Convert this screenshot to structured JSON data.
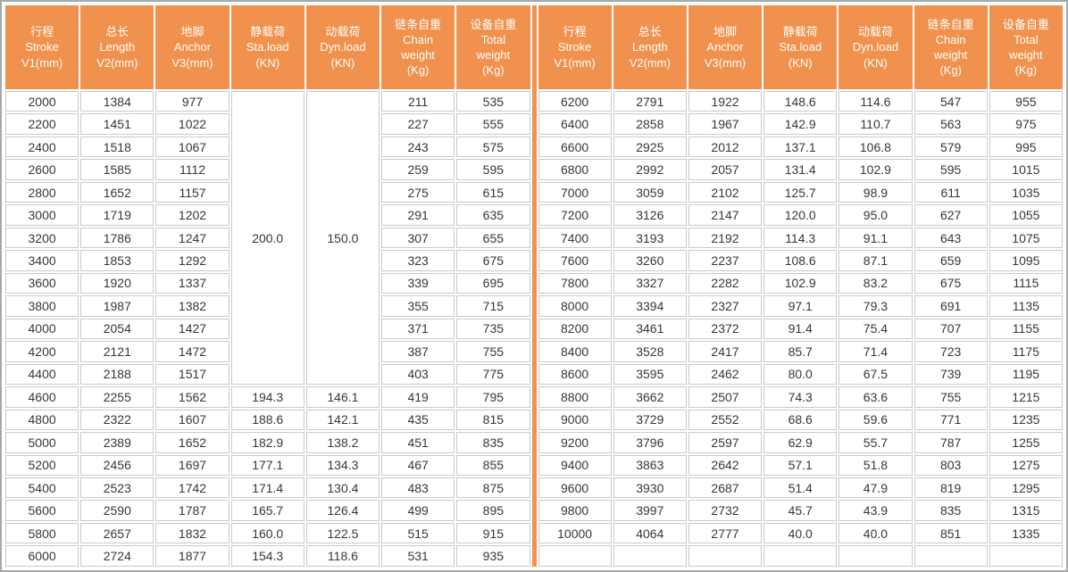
{
  "style": {
    "accent_color": "#f0914d",
    "cell_border_color": "#c9c9c9",
    "frame_border_color": "#a9a9a9",
    "header_text_color": "#ffffff",
    "data_text_color": "#3b3534"
  },
  "columns": [
    {
      "zh": "行程",
      "en": "Stroke",
      "unit": "V1(mm)"
    },
    {
      "zh": "总长",
      "en": "Length",
      "unit": "V2(mm)"
    },
    {
      "zh": "地脚",
      "en": "Anchor",
      "unit": "V3(mm)"
    },
    {
      "zh": "静载荷",
      "en": "Sta.load",
      "unit": "(KN)"
    },
    {
      "zh": "动载荷",
      "en": "Dyn.load",
      "unit": "(KN)"
    },
    {
      "zh": "链条自重",
      "en": "Chain",
      "en2": "weight",
      "unit": "(Kg)"
    },
    {
      "zh": "设备自重",
      "en": "Total",
      "en2": "weight",
      "unit": "(Kg)"
    }
  ],
  "left_table": {
    "merged": {
      "sta_load": "200.0",
      "dyn_load": "150.0",
      "row_span": 13
    },
    "rows": [
      [
        "2000",
        "1384",
        "977",
        null,
        null,
        "211",
        "535"
      ],
      [
        "2200",
        "1451",
        "1022",
        null,
        null,
        "227",
        "555"
      ],
      [
        "2400",
        "1518",
        "1067",
        null,
        null,
        "243",
        "575"
      ],
      [
        "2600",
        "1585",
        "1112",
        null,
        null,
        "259",
        "595"
      ],
      [
        "2800",
        "1652",
        "1157",
        null,
        null,
        "275",
        "615"
      ],
      [
        "3000",
        "1719",
        "1202",
        null,
        null,
        "291",
        "635"
      ],
      [
        "3200",
        "1786",
        "1247",
        null,
        null,
        "307",
        "655"
      ],
      [
        "3400",
        "1853",
        "1292",
        null,
        null,
        "323",
        "675"
      ],
      [
        "3600",
        "1920",
        "1337",
        null,
        null,
        "339",
        "695"
      ],
      [
        "3800",
        "1987",
        "1382",
        null,
        null,
        "355",
        "715"
      ],
      [
        "4000",
        "2054",
        "1427",
        null,
        null,
        "371",
        "735"
      ],
      [
        "4200",
        "2121",
        "1472",
        null,
        null,
        "387",
        "755"
      ],
      [
        "4400",
        "2188",
        "1517",
        null,
        null,
        "403",
        "775"
      ],
      [
        "4600",
        "2255",
        "1562",
        "194.3",
        "146.1",
        "419",
        "795"
      ],
      [
        "4800",
        "2322",
        "1607",
        "188.6",
        "142.1",
        "435",
        "815"
      ],
      [
        "5000",
        "2389",
        "1652",
        "182.9",
        "138.2",
        "451",
        "835"
      ],
      [
        "5200",
        "2456",
        "1697",
        "177.1",
        "134.3",
        "467",
        "855"
      ],
      [
        "5400",
        "2523",
        "1742",
        "171.4",
        "130.4",
        "483",
        "875"
      ],
      [
        "5600",
        "2590",
        "1787",
        "165.7",
        "126.4",
        "499",
        "895"
      ],
      [
        "5800",
        "2657",
        "1832",
        "160.0",
        "122.5",
        "515",
        "915"
      ],
      [
        "6000",
        "2724",
        "1877",
        "154.3",
        "118.6",
        "531",
        "935"
      ]
    ]
  },
  "right_table": {
    "rows": [
      [
        "6200",
        "2791",
        "1922",
        "148.6",
        "114.6",
        "547",
        "955"
      ],
      [
        "6400",
        "2858",
        "1967",
        "142.9",
        "110.7",
        "563",
        "975"
      ],
      [
        "6600",
        "2925",
        "2012",
        "137.1",
        "106.8",
        "579",
        "995"
      ],
      [
        "6800",
        "2992",
        "2057",
        "131.4",
        "102.9",
        "595",
        "1015"
      ],
      [
        "7000",
        "3059",
        "2102",
        "125.7",
        "98.9",
        "611",
        "1035"
      ],
      [
        "7200",
        "3126",
        "2147",
        "120.0",
        "95.0",
        "627",
        "1055"
      ],
      [
        "7400",
        "3193",
        "2192",
        "114.3",
        "91.1",
        "643",
        "1075"
      ],
      [
        "7600",
        "3260",
        "2237",
        "108.6",
        "87.1",
        "659",
        "1095"
      ],
      [
        "7800",
        "3327",
        "2282",
        "102.9",
        "83.2",
        "675",
        "1115"
      ],
      [
        "8000",
        "3394",
        "2327",
        "97.1",
        "79.3",
        "691",
        "1135"
      ],
      [
        "8200",
        "3461",
        "2372",
        "91.4",
        "75.4",
        "707",
        "1155"
      ],
      [
        "8400",
        "3528",
        "2417",
        "85.7",
        "71.4",
        "723",
        "1175"
      ],
      [
        "8600",
        "3595",
        "2462",
        "80.0",
        "67.5",
        "739",
        "1195"
      ],
      [
        "8800",
        "3662",
        "2507",
        "74.3",
        "63.6",
        "755",
        "1215"
      ],
      [
        "9000",
        "3729",
        "2552",
        "68.6",
        "59.6",
        "771",
        "1235"
      ],
      [
        "9200",
        "3796",
        "2597",
        "62.9",
        "55.7",
        "787",
        "1255"
      ],
      [
        "9400",
        "3863",
        "2642",
        "57.1",
        "51.8",
        "803",
        "1275"
      ],
      [
        "9600",
        "3930",
        "2687",
        "51.4",
        "47.9",
        "819",
        "1295"
      ],
      [
        "9800",
        "3997",
        "2732",
        "45.7",
        "43.9",
        "835",
        "1315"
      ],
      [
        "10000",
        "4064",
        "2777",
        "40.0",
        "40.0",
        "851",
        "1335"
      ],
      [
        "",
        "",
        "",
        "",
        "",
        "",
        ""
      ]
    ]
  }
}
